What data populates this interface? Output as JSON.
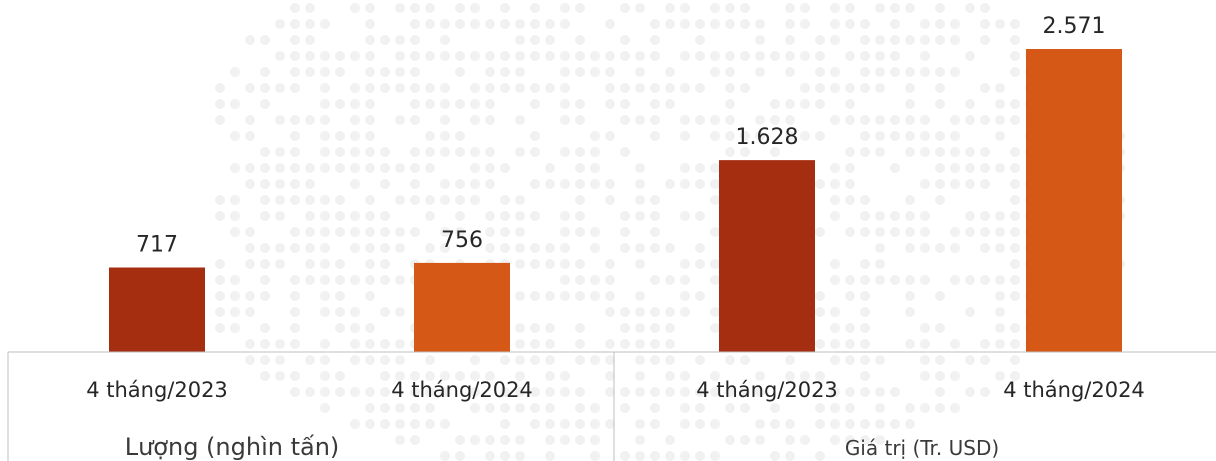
{
  "chart_data": {
    "type": "bar",
    "groups": [
      {
        "label": "Lượng (nghìn tấn)",
        "categories": [
          "4 tháng/2023",
          "4 tháng/2024"
        ],
        "values": [
          717,
          756
        ],
        "value_labels": [
          "717",
          "756"
        ],
        "colors": [
          "#a52e10",
          "#d55816"
        ]
      },
      {
        "label": "Giá trị (Tr. USD)",
        "categories": [
          "4 tháng/2023",
          "4 tháng/2024"
        ],
        "values": [
          1628,
          2571
        ],
        "value_labels": [
          "1.628",
          "2.571"
        ],
        "colors": [
          "#a52e10",
          "#d55816"
        ]
      }
    ],
    "title": "",
    "xlabel": "",
    "ylabel": "",
    "ylim": [
      0,
      2800
    ],
    "grid": false,
    "legend": "none"
  }
}
